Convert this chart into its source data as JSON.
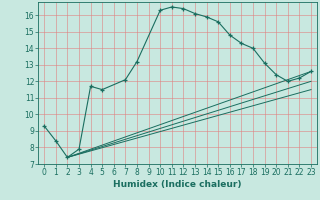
{
  "xlabel": "Humidex (Indice chaleur)",
  "bg_color": "#c8e8e0",
  "line_color": "#1a6e60",
  "grid_color": "#e08080",
  "xlim": [
    -0.5,
    23.5
  ],
  "ylim": [
    7,
    16.8
  ],
  "yticks": [
    7,
    8,
    9,
    10,
    11,
    12,
    13,
    14,
    15,
    16
  ],
  "xticks": [
    0,
    1,
    2,
    3,
    4,
    5,
    6,
    7,
    8,
    9,
    10,
    11,
    12,
    13,
    14,
    15,
    16,
    17,
    18,
    19,
    20,
    21,
    22,
    23
  ],
  "curve1_x": [
    0,
    1,
    2,
    3,
    4,
    5,
    7,
    8,
    10,
    11,
    12,
    13,
    14,
    15,
    16,
    17,
    18,
    19,
    20,
    21,
    22,
    23
  ],
  "curve1_y": [
    9.3,
    8.4,
    7.4,
    7.9,
    11.7,
    11.5,
    12.1,
    13.2,
    16.3,
    16.5,
    16.4,
    16.1,
    15.9,
    15.6,
    14.8,
    14.3,
    14.0,
    13.1,
    12.4,
    12.0,
    12.2,
    12.6
  ],
  "line1_x": [
    2,
    23
  ],
  "line1_y": [
    7.4,
    12.6
  ],
  "line2_x": [
    2,
    23
  ],
  "line2_y": [
    7.4,
    12.0
  ],
  "line3_x": [
    2,
    23
  ],
  "line3_y": [
    7.4,
    11.5
  ],
  "tick_fontsize": 5.5,
  "xlabel_fontsize": 6.5
}
